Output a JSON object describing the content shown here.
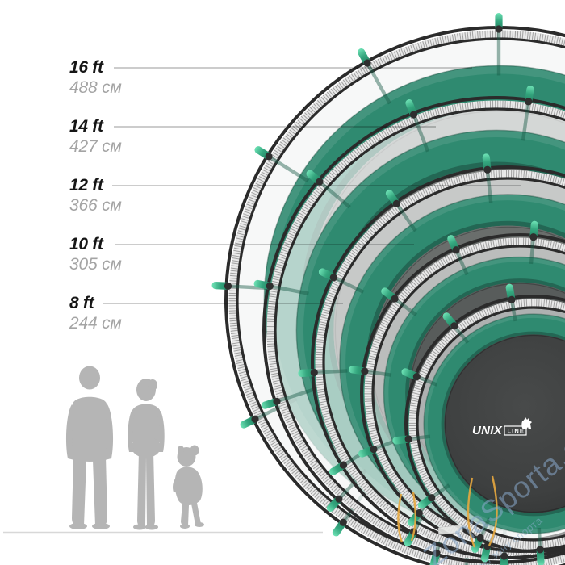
{
  "sizes": [
    {
      "ft": "16 ft",
      "cm": "488 см"
    },
    {
      "ft": "14 ft",
      "cm": "427 см"
    },
    {
      "ft": "12 ft",
      "cm": "366 см"
    },
    {
      "ft": "10 ft",
      "cm": "305 см"
    },
    {
      "ft": "8 ft",
      "cm": "244 см"
    }
  ],
  "logo": {
    "brand": "UNIX",
    "sub": "LINE"
  },
  "watermark": {
    "main": "ZonaSporta.com",
    "sub": "свою зону спорта"
  },
  "chart_data": {
    "type": "table",
    "categories": [
      "16 ft",
      "14 ft",
      "12 ft",
      "10 ft",
      "8 ft"
    ],
    "values_cm": [
      488,
      427,
      366,
      305,
      244
    ]
  },
  "colors": {
    "green": "#2f8a70",
    "cap_mint": "#5fdcae",
    "rail": "#2b2b2b",
    "mat_dark": "#3e4040",
    "label": "#161616",
    "label_gray": "#a4a4a4",
    "silhouette": "#b5b5b5",
    "watermark_blue": "#89a9cc",
    "thread_orange": "#e8a93f"
  }
}
